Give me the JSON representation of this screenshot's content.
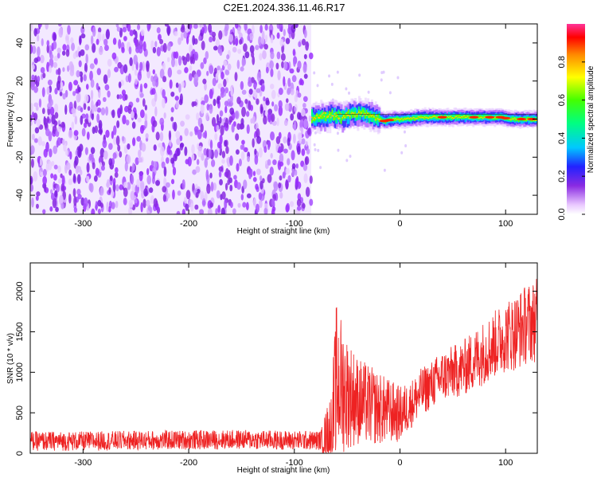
{
  "title": "C2E1.2024.336.11.46.R17",
  "chart_data": [
    {
      "type": "heatmap",
      "xlabel": "Height of straight line (km)",
      "ylabel": "Frequency (Hz)",
      "xlim": [
        -350,
        130
      ],
      "ylim": [
        -50,
        50
      ],
      "x_ticks": [
        -300,
        -200,
        -100,
        0,
        100
      ],
      "y_ticks": [
        -40,
        -20,
        0,
        20,
        40
      ],
      "x_tick_labels": [
        "-300",
        "-200",
        "-100",
        "0",
        "100"
      ],
      "y_tick_labels": [
        "-40",
        "-20",
        "0",
        "20",
        "40"
      ],
      "colorbar": {
        "label": "Normalized spectral amplitude",
        "range": [
          0,
          1
        ],
        "ticks": [
          0.0,
          0.2,
          0.4,
          0.6,
          0.8
        ],
        "tick_labels": [
          "0.0",
          "0.2",
          "0.4",
          "0.6",
          "0.8"
        ],
        "colormap": "rainbow"
      },
      "noise_region_x": [
        -350,
        -84
      ],
      "signal_ridge": {
        "x": [
          -85,
          -75,
          -65,
          -55,
          -45,
          -35,
          -25,
          -15,
          -5,
          5,
          20,
          40,
          60,
          80,
          95,
          105,
          130
        ],
        "frequency": [
          1,
          1,
          2,
          1,
          3,
          3,
          1,
          -1,
          0,
          0,
          1,
          1,
          1,
          1,
          1,
          0,
          0
        ]
      }
    },
    {
      "type": "line",
      "xlabel": "Height of straight line (km)",
      "ylabel": "SNR (10 * v/v)",
      "xlim": [
        -350,
        130
      ],
      "ylim": [
        0,
        2350
      ],
      "x_ticks": [
        -300,
        -200,
        -100,
        0,
        100
      ],
      "y_ticks": [
        0,
        500,
        1000,
        1500,
        2000
      ],
      "x_tick_labels": [
        "-300",
        "-200",
        "-100",
        "0",
        "100"
      ],
      "y_tick_labels": [
        "0",
        "500",
        "1000",
        "1500",
        "2000"
      ],
      "series": [
        {
          "color": "#ee2222",
          "x": [
            -350,
            -300,
            -250,
            -200,
            -150,
            -100,
            -75,
            -65,
            -60,
            -50,
            -40,
            -30,
            -20,
            -10,
            0,
            10,
            20,
            30,
            40,
            50,
            60,
            70,
            80,
            90,
            100,
            110,
            120,
            130
          ],
          "y_mean": [
            150,
            150,
            160,
            165,
            170,
            160,
            160,
            300,
            900,
            750,
            650,
            600,
            550,
            520,
            480,
            600,
            750,
            850,
            950,
            1000,
            1050,
            1150,
            1250,
            1350,
            1450,
            1500,
            1600,
            1650
          ],
          "y_spread": [
            120,
            120,
            120,
            120,
            120,
            120,
            120,
            500,
            1000,
            700,
            550,
            500,
            450,
            400,
            350,
            300,
            300,
            300,
            320,
            330,
            350,
            380,
            400,
            420,
            450,
            480,
            500,
            520
          ]
        }
      ]
    }
  ]
}
